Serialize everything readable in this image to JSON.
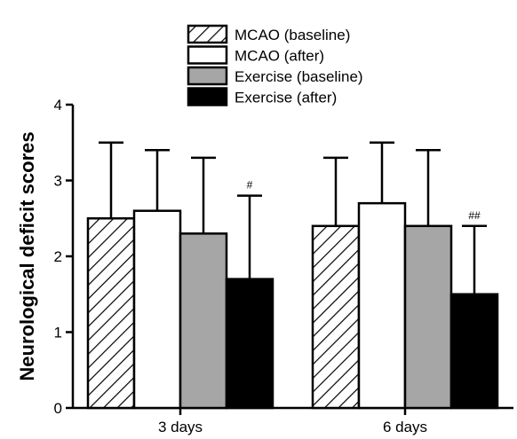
{
  "chart_data": {
    "type": "bar",
    "title": "",
    "xlabel": "",
    "ylabel": "Neurological deficit scores",
    "ylim": [
      0,
      4
    ],
    "yticks": [
      0,
      1,
      2,
      3,
      4
    ],
    "grid": false,
    "legend_position": "top-center",
    "categories": [
      "3 days",
      "6 days"
    ],
    "series": [
      {
        "name": "MCAO (baseline)",
        "values": [
          2.5,
          2.4
        ],
        "error": [
          1.0,
          0.9
        ],
        "fill": "hatch",
        "color": "#ffffff"
      },
      {
        "name": "MCAO (after)",
        "values": [
          2.6,
          2.7
        ],
        "error": [
          0.8,
          0.8
        ],
        "fill": "solid",
        "color": "#ffffff"
      },
      {
        "name": "Exercise (baseline)",
        "values": [
          2.3,
          2.4
        ],
        "error": [
          1.0,
          1.0
        ],
        "fill": "solid",
        "color": "#a6a6a6"
      },
      {
        "name": "Exercise (after)",
        "values": [
          1.7,
          1.5
        ],
        "error": [
          1.1,
          0.9
        ],
        "fill": "solid",
        "color": "#000000"
      }
    ],
    "annotations": [
      {
        "category": "3 days",
        "series": "Exercise (after)",
        "text": "#"
      },
      {
        "category": "6 days",
        "series": "Exercise (after)",
        "text": "##"
      }
    ]
  }
}
